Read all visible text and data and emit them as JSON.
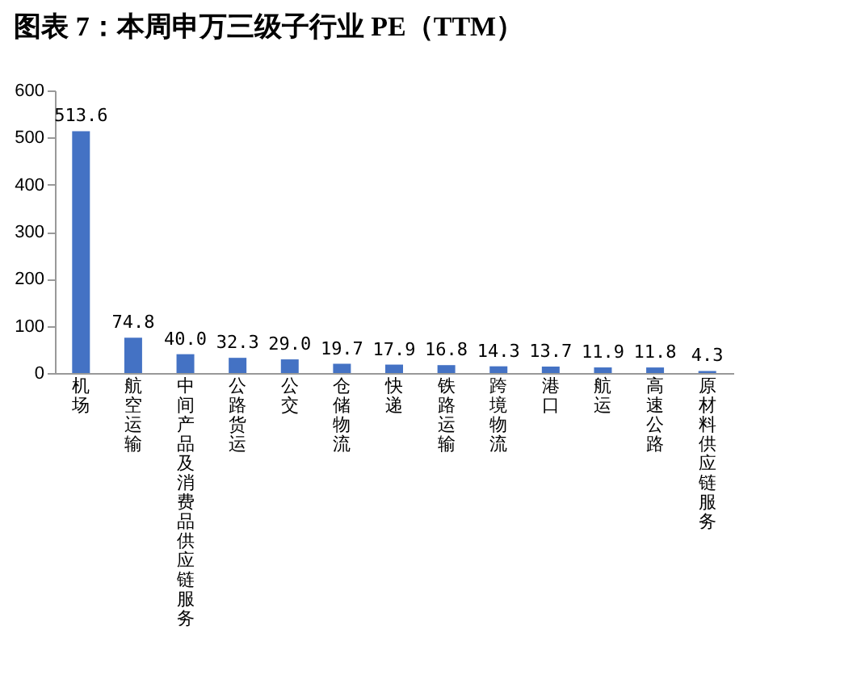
{
  "chart_data": {
    "type": "bar",
    "title": "图表 7：本周申万三级子行业 PE（TTM）",
    "categories": [
      "机场",
      "航空运输",
      "中间产品及消费品供应链服务",
      "公路货运",
      "公交",
      "仓储物流",
      "快递",
      "铁路运输",
      "跨境物流",
      "港口",
      "航运",
      "高速公路",
      "原材料供应链服务"
    ],
    "values": [
      513.6,
      74.8,
      40.0,
      32.3,
      29.0,
      19.7,
      17.9,
      16.8,
      14.3,
      13.7,
      11.9,
      11.8,
      4.3
    ],
    "color": "#4472c4",
    "ylim": [
      0,
      600
    ],
    "yticks": [
      0,
      100,
      200,
      300,
      400,
      500,
      600
    ],
    "value_labels": [
      "513.6",
      "74.8",
      "40.0",
      "32.3",
      "29.0",
      "19.7",
      "17.9",
      "16.8",
      "14.3",
      "13.7",
      "11.9",
      "11.8",
      "4.3"
    ]
  }
}
